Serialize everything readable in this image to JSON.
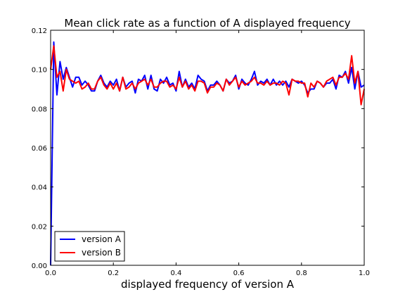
{
  "chart_data": {
    "type": "line",
    "title": "Mean click rate as a function of A displayed frequency",
    "xlabel": "displayed frequency of version A",
    "ylabel": "",
    "xlim": [
      0.0,
      1.0
    ],
    "ylim": [
      0.0,
      0.12
    ],
    "xticks": [
      {
        "value": 0.0,
        "label": "0.0"
      },
      {
        "value": 0.2,
        "label": "0.2"
      },
      {
        "value": 0.4,
        "label": "0.4"
      },
      {
        "value": 0.6,
        "label": "0.6"
      },
      {
        "value": 0.8,
        "label": "0.8"
      },
      {
        "value": 1.0,
        "label": "1.0"
      }
    ],
    "yticks": [
      {
        "value": 0.0,
        "label": "0.00"
      },
      {
        "value": 0.02,
        "label": "0.02"
      },
      {
        "value": 0.04,
        "label": "0.04"
      },
      {
        "value": 0.06,
        "label": "0.06"
      },
      {
        "value": 0.08,
        "label": "0.08"
      },
      {
        "value": 0.1,
        "label": "0.10"
      },
      {
        "value": 0.12,
        "label": "0.12"
      }
    ],
    "grid": false,
    "legend_position": "lower-left",
    "x": [
      0.0,
      0.01,
      0.02,
      0.03,
      0.04,
      0.05,
      0.06,
      0.07,
      0.08,
      0.09,
      0.1,
      0.11,
      0.12,
      0.13,
      0.14,
      0.15,
      0.16,
      0.17,
      0.18,
      0.19,
      0.2,
      0.21,
      0.22,
      0.23,
      0.24,
      0.25,
      0.26,
      0.27,
      0.28,
      0.29,
      0.3,
      0.31,
      0.32,
      0.33,
      0.34,
      0.35,
      0.36,
      0.37,
      0.38,
      0.39,
      0.4,
      0.41,
      0.42,
      0.43,
      0.44,
      0.45,
      0.46,
      0.47,
      0.48,
      0.49,
      0.5,
      0.51,
      0.52,
      0.53,
      0.54,
      0.55,
      0.56,
      0.57,
      0.58,
      0.59,
      0.6,
      0.61,
      0.62,
      0.63,
      0.64,
      0.65,
      0.66,
      0.67,
      0.68,
      0.69,
      0.7,
      0.71,
      0.72,
      0.73,
      0.74,
      0.75,
      0.76,
      0.77,
      0.78,
      0.79,
      0.8,
      0.81,
      0.82,
      0.83,
      0.84,
      0.85,
      0.86,
      0.87,
      0.88,
      0.89,
      0.9,
      0.91,
      0.92,
      0.93,
      0.94,
      0.95,
      0.96,
      0.97,
      0.98,
      0.99,
      1.0
    ],
    "series": [
      {
        "name": "version A",
        "color": "#0000ff",
        "values": [
          0.0,
          0.114,
          0.087,
          0.104,
          0.095,
          0.101,
          0.096,
          0.091,
          0.096,
          0.096,
          0.092,
          0.094,
          0.092,
          0.089,
          0.089,
          0.094,
          0.097,
          0.093,
          0.091,
          0.094,
          0.092,
          0.095,
          0.089,
          0.096,
          0.091,
          0.093,
          0.094,
          0.088,
          0.095,
          0.094,
          0.097,
          0.09,
          0.097,
          0.09,
          0.089,
          0.095,
          0.093,
          0.096,
          0.092,
          0.093,
          0.089,
          0.099,
          0.091,
          0.095,
          0.091,
          0.093,
          0.09,
          0.097,
          0.095,
          0.094,
          0.089,
          0.092,
          0.092,
          0.094,
          0.092,
          0.089,
          0.095,
          0.093,
          0.094,
          0.097,
          0.09,
          0.095,
          0.093,
          0.092,
          0.095,
          0.099,
          0.092,
          0.094,
          0.093,
          0.095,
          0.092,
          0.095,
          0.092,
          0.094,
          0.092,
          0.094,
          0.091,
          0.095,
          0.094,
          0.093,
          0.094,
          0.092,
          0.088,
          0.09,
          0.09,
          0.094,
          0.093,
          0.091,
          0.093,
          0.093,
          0.095,
          0.09,
          0.097,
          0.096,
          0.099,
          0.093,
          0.101,
          0.09,
          0.099,
          0.091,
          0.092
        ]
      },
      {
        "name": "version B",
        "color": "#ff0000",
        "values": [
          0.1,
          0.112,
          0.096,
          0.099,
          0.089,
          0.1,
          0.095,
          0.094,
          0.093,
          0.094,
          0.09,
          0.091,
          0.093,
          0.09,
          0.09,
          0.094,
          0.096,
          0.092,
          0.09,
          0.093,
          0.09,
          0.093,
          0.089,
          0.096,
          0.09,
          0.091,
          0.093,
          0.09,
          0.093,
          0.094,
          0.095,
          0.092,
          0.095,
          0.091,
          0.091,
          0.093,
          0.094,
          0.094,
          0.091,
          0.092,
          0.09,
          0.096,
          0.091,
          0.094,
          0.09,
          0.092,
          0.089,
          0.094,
          0.094,
          0.093,
          0.088,
          0.091,
          0.091,
          0.093,
          0.092,
          0.089,
          0.095,
          0.092,
          0.094,
          0.096,
          0.091,
          0.094,
          0.092,
          0.093,
          0.094,
          0.096,
          0.093,
          0.093,
          0.092,
          0.094,
          0.092,
          0.093,
          0.093,
          0.092,
          0.094,
          0.093,
          0.087,
          0.095,
          0.094,
          0.094,
          0.093,
          0.093,
          0.086,
          0.093,
          0.091,
          0.094,
          0.093,
          0.091,
          0.094,
          0.095,
          0.096,
          0.092,
          0.096,
          0.096,
          0.098,
          0.095,
          0.107,
          0.093,
          0.099,
          0.082,
          0.09
        ]
      }
    ]
  }
}
